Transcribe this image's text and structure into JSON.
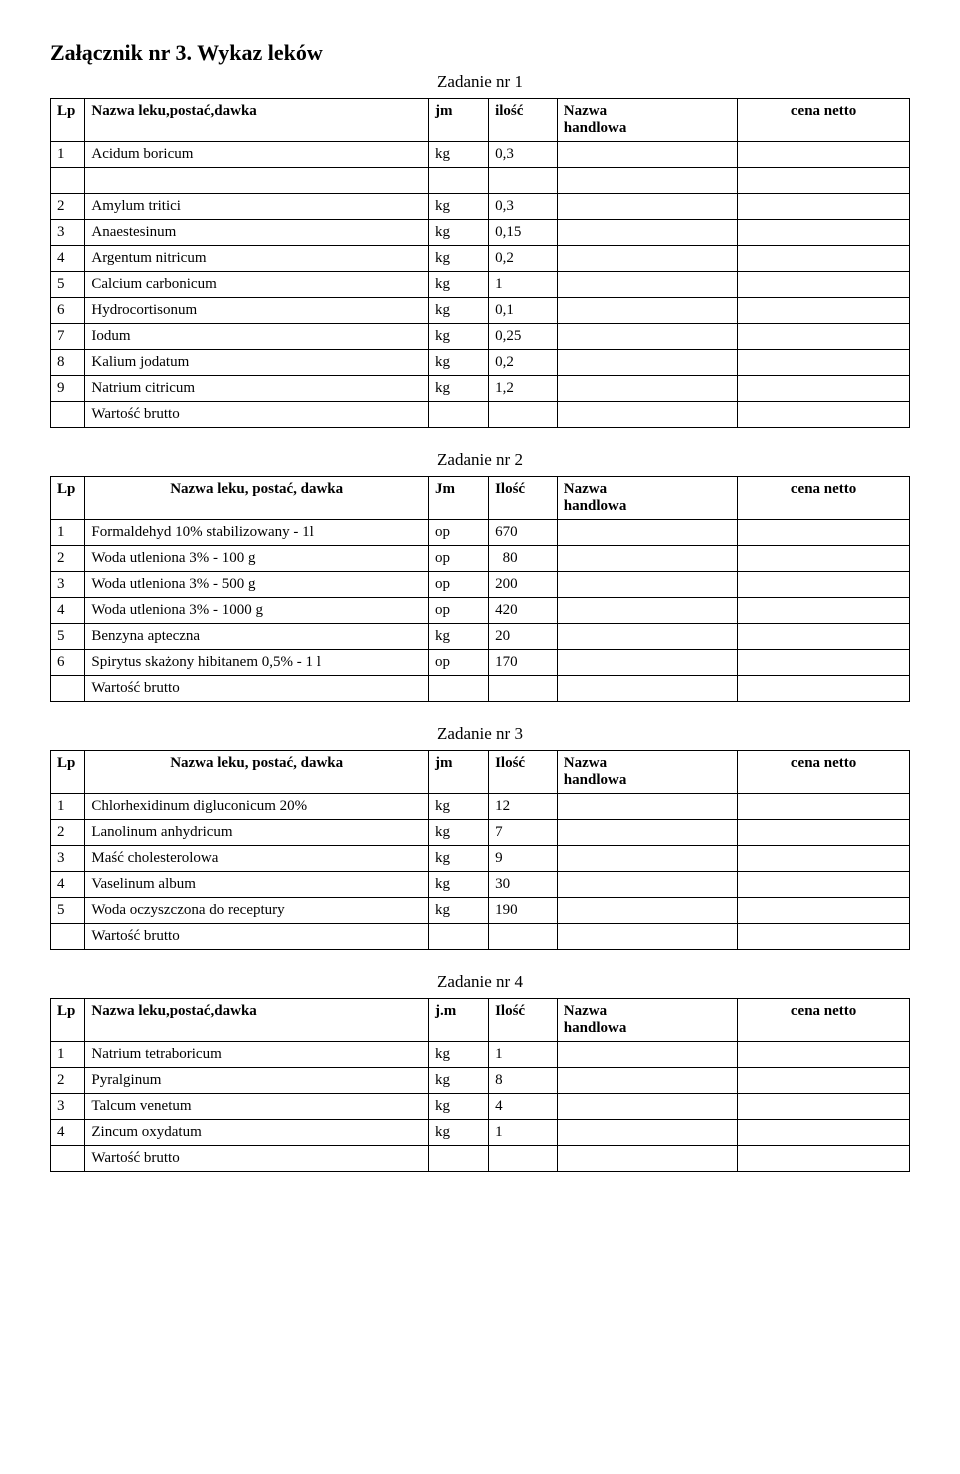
{
  "doc_title": "Załącznik nr 3.  Wykaz leków",
  "common": {
    "lp": "Lp",
    "nazwa": "Nazwa",
    "handlowa": "handlowa",
    "cena_netto": "cena netto",
    "wartosc_brutto": "Wartość brutto"
  },
  "task1": {
    "label": "Zadanie nr 1",
    "head_name": "Nazwa leku,postać,dawka",
    "head_jm": "jm",
    "head_qty": "ilość",
    "rows": [
      {
        "lp": "1",
        "name": "Acidum boricum",
        "jm": "kg",
        "qty": "0,3"
      },
      {
        "lp": "2",
        "name": "Amylum tritici",
        "jm": "kg",
        "qty": "0,3"
      },
      {
        "lp": "3",
        "name": "Anaestesinum",
        "jm": "kg",
        "qty": "0,15"
      },
      {
        "lp": "4",
        "name": "Argentum nitricum",
        "jm": "kg",
        "qty": "0,2"
      },
      {
        "lp": "5",
        "name": "Calcium carbonicum",
        "jm": "kg",
        "qty": "1"
      },
      {
        "lp": "6",
        "name": "Hydrocortisonum",
        "jm": "kg",
        "qty": "0,1"
      },
      {
        "lp": "7",
        "name": "Iodum",
        "jm": "kg",
        "qty": "0,25"
      },
      {
        "lp": "8",
        "name": "Kalium jodatum",
        "jm": "kg",
        "qty": "0,2"
      },
      {
        "lp": "9",
        "name": "Natrium citricum",
        "jm": "kg",
        "qty": "1,2"
      }
    ]
  },
  "task2": {
    "label": "Zadanie  nr  2",
    "head_name": "Nazwa leku, postać, dawka",
    "head_jm": "Jm",
    "head_qty": "Ilość",
    "rows": [
      {
        "lp": "1",
        "name": "Formaldehyd  10%  stabilizowany - 1l",
        "jm": "op",
        "qty": "670"
      },
      {
        "lp": "2",
        "name": "Woda utleniona  3%   -  100 g",
        "jm": "op",
        "qty": "  80"
      },
      {
        "lp": "3",
        "name": "Woda utleniona  3% - 500 g",
        "jm": "op",
        "qty": "200"
      },
      {
        "lp": "4",
        "name": "Woda utleniona  3%  - 1000 g",
        "jm": "op",
        "qty": "420"
      },
      {
        "lp": "5",
        "name": "Benzyna apteczna",
        "jm": "kg",
        "qty": "20"
      },
      {
        "lp": "6",
        "name": "Spirytus skażony hibitanem 0,5% - 1 l",
        "jm": "op",
        "qty": "170"
      }
    ]
  },
  "task3": {
    "label": "Zadanie  nr  3",
    "head_name": "Nazwa leku, postać, dawka",
    "head_jm": "jm",
    "head_qty": "Ilość",
    "rows": [
      {
        "lp": "1",
        "name": "Chlorhexidinum digluconicum  20%",
        "jm": "kg",
        "qty": "12"
      },
      {
        "lp": "2",
        "name": "Lanolinum anhydricum",
        "jm": "kg",
        "qty": "7"
      },
      {
        "lp": "3",
        "name": "Maść cholesterolowa",
        "jm": "kg",
        "qty": "9"
      },
      {
        "lp": "4",
        "name": "Vaselinum album",
        "jm": "kg",
        "qty": "30"
      },
      {
        "lp": "5",
        "name": "Woda oczyszczona do receptury",
        "jm": "kg",
        "qty": "190"
      }
    ]
  },
  "task4": {
    "label": "Zadanie  nr 4",
    "head_name": "Nazwa leku,postać,dawka",
    "head_jm": "j.m",
    "head_qty": "Ilość",
    "rows": [
      {
        "lp": "1",
        "name": "Natrium tetraboricum",
        "jm": "kg",
        "qty": "1"
      },
      {
        "lp": "2",
        "name": "Pyralginum",
        "jm": "kg",
        "qty": "8"
      },
      {
        "lp": "3",
        "name": "Talcum venetum",
        "jm": "kg",
        "qty": "4"
      },
      {
        "lp": "4",
        "name": "Zincum oxydatum",
        "jm": "kg",
        "qty": "1"
      }
    ]
  }
}
